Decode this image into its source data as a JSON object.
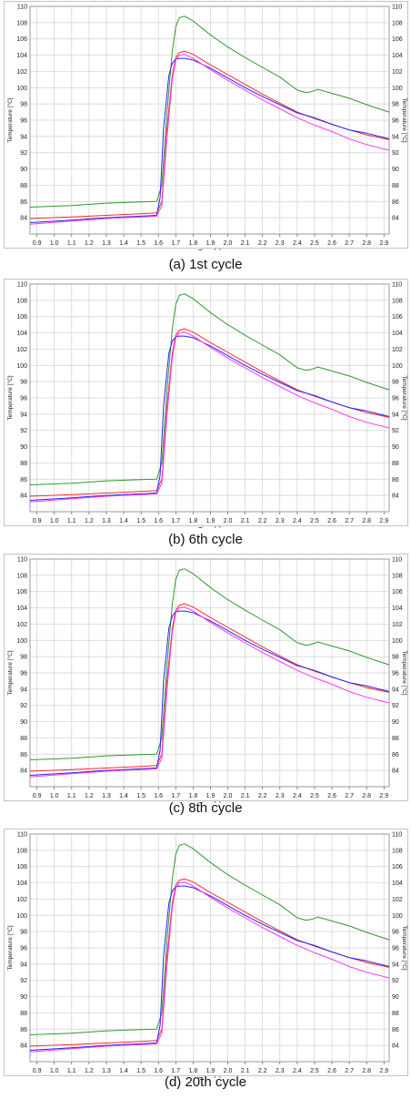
{
  "colors": {
    "green": "#2e9a2e",
    "red": "#ff2a2a",
    "blue": "#2424ff",
    "magenta": "#ff33ff",
    "grid": "#d0d0d0",
    "frame": "#9a9a9a"
  },
  "chart_data": [
    {
      "type": "line",
      "caption": "(a)  1st  cycle",
      "xlabel": "Time [s]",
      "ylabel": "Temperature [°C]",
      "ylabel_right": "Temperature [°C]",
      "xlim": [
        0.86,
        2.93
      ],
      "ylim": [
        82,
        110
      ],
      "xticks": [
        "0.9",
        "1.0",
        "1.1",
        "1.2",
        "1.3",
        "1.4",
        "1.5",
        "1.6",
        "1.7",
        "1.8",
        "1.9",
        "2.0",
        "2.1",
        "2.2",
        "2.3",
        "2.4",
        "2.5",
        "2.6",
        "2.7",
        "2.8",
        "2.9"
      ],
      "yticks": [
        "84",
        "86",
        "88",
        "90",
        "92",
        "94",
        "96",
        "98",
        "100",
        "102",
        "104",
        "106",
        "108",
        "110"
      ],
      "grid": true,
      "series": [
        {
          "color": "green",
          "x": [
            0.86,
            1.1,
            1.3,
            1.5,
            1.59,
            1.62,
            1.65,
            1.68,
            1.7,
            1.72,
            1.75,
            1.8,
            1.9,
            2.0,
            2.1,
            2.2,
            2.3,
            2.4,
            2.45,
            2.48,
            2.52,
            2.6,
            2.7,
            2.8,
            2.93
          ],
          "y": [
            85.3,
            85.5,
            85.8,
            85.95,
            86.0,
            88.0,
            97.0,
            104.5,
            107.5,
            108.6,
            108.8,
            108.2,
            106.5,
            105.0,
            103.7,
            102.5,
            101.3,
            99.7,
            99.4,
            99.5,
            99.8,
            99.3,
            98.7,
            97.9,
            97.0
          ]
        },
        {
          "color": "red",
          "x": [
            0.86,
            1.1,
            1.3,
            1.5,
            1.59,
            1.62,
            1.65,
            1.68,
            1.7,
            1.72,
            1.75,
            1.8,
            1.9,
            2.0,
            2.1,
            2.2,
            2.3,
            2.4,
            2.5,
            2.6,
            2.7,
            2.8,
            2.93
          ],
          "y": [
            83.9,
            84.1,
            84.3,
            84.5,
            84.6,
            86.0,
            95.0,
            101.5,
            103.7,
            104.3,
            104.5,
            104.1,
            102.8,
            101.6,
            100.4,
            99.2,
            98.1,
            97.0,
            96.2,
            95.5,
            94.8,
            94.2,
            93.6
          ]
        },
        {
          "color": "blue",
          "x": [
            0.86,
            1.1,
            1.3,
            1.5,
            1.59,
            1.61,
            1.63,
            1.66,
            1.68,
            1.7,
            1.72,
            1.75,
            1.8,
            1.9,
            2.0,
            2.1,
            2.2,
            2.3,
            2.4,
            2.5,
            2.6,
            2.7,
            2.8,
            2.93
          ],
          "y": [
            83.4,
            83.7,
            84.0,
            84.2,
            84.3,
            86.5,
            95.0,
            101.5,
            103.0,
            103.5,
            103.6,
            103.6,
            103.4,
            102.4,
            101.2,
            100.0,
            98.9,
            97.9,
            96.9,
            96.3,
            95.5,
            94.8,
            94.4,
            93.7
          ]
        },
        {
          "color": "magenta",
          "x": [
            0.86,
            1.1,
            1.3,
            1.5,
            1.59,
            1.62,
            1.65,
            1.68,
            1.7,
            1.72,
            1.75,
            1.8,
            1.9,
            2.0,
            2.1,
            2.2,
            2.3,
            2.4,
            2.5,
            2.6,
            2.7,
            2.8,
            2.93
          ],
          "y": [
            83.2,
            83.6,
            83.9,
            84.1,
            84.2,
            85.5,
            94.0,
            101.0,
            103.4,
            104.0,
            104.1,
            103.6,
            102.2,
            100.9,
            99.7,
            98.5,
            97.4,
            96.3,
            95.4,
            94.6,
            93.7,
            93.0,
            92.3
          ]
        }
      ]
    },
    {
      "type": "line",
      "caption": "(b)  6th  cycle",
      "xlabel": "Time [s]",
      "ylabel": "Temperature [°C]",
      "ylabel_right": "Temperature [°C]",
      "xlim": [
        0.86,
        2.93
      ],
      "ylim": [
        82,
        110
      ],
      "xticks": [
        "0.9",
        "1.0",
        "1.1",
        "1.2",
        "1.3",
        "1.4",
        "1.5",
        "1.6",
        "1.7",
        "1.8",
        "1.9",
        "2.0",
        "2.1",
        "2.2",
        "2.3",
        "2.4",
        "2.5",
        "2.6",
        "2.7",
        "2.8",
        "2.9"
      ],
      "yticks": [
        "84",
        "86",
        "88",
        "90",
        "92",
        "94",
        "96",
        "98",
        "100",
        "102",
        "104",
        "106",
        "108",
        "110"
      ],
      "grid": true,
      "series": [
        {
          "color": "green",
          "x": [
            0.86,
            1.1,
            1.3,
            1.5,
            1.59,
            1.62,
            1.65,
            1.68,
            1.7,
            1.72,
            1.75,
            1.8,
            1.9,
            2.0,
            2.1,
            2.2,
            2.3,
            2.4,
            2.45,
            2.48,
            2.52,
            2.6,
            2.7,
            2.8,
            2.93
          ],
          "y": [
            85.3,
            85.5,
            85.8,
            85.95,
            86.0,
            88.0,
            97.0,
            104.5,
            107.5,
            108.6,
            108.8,
            108.2,
            106.5,
            105.0,
            103.7,
            102.5,
            101.3,
            99.7,
            99.4,
            99.5,
            99.8,
            99.3,
            98.7,
            97.9,
            97.0
          ]
        },
        {
          "color": "red",
          "x": [
            0.86,
            1.1,
            1.3,
            1.5,
            1.59,
            1.62,
            1.65,
            1.68,
            1.7,
            1.72,
            1.75,
            1.8,
            1.9,
            2.0,
            2.1,
            2.2,
            2.3,
            2.4,
            2.5,
            2.6,
            2.7,
            2.8,
            2.93
          ],
          "y": [
            83.9,
            84.1,
            84.3,
            84.5,
            84.6,
            86.0,
            95.0,
            101.5,
            103.7,
            104.3,
            104.5,
            104.1,
            102.8,
            101.6,
            100.4,
            99.2,
            98.1,
            97.0,
            96.2,
            95.5,
            94.8,
            94.2,
            93.6
          ]
        },
        {
          "color": "blue",
          "x": [
            0.86,
            1.1,
            1.3,
            1.5,
            1.59,
            1.61,
            1.63,
            1.66,
            1.68,
            1.7,
            1.72,
            1.75,
            1.8,
            1.9,
            2.0,
            2.1,
            2.2,
            2.3,
            2.4,
            2.5,
            2.6,
            2.7,
            2.8,
            2.93
          ],
          "y": [
            83.4,
            83.7,
            84.0,
            84.2,
            84.3,
            86.5,
            95.0,
            101.5,
            103.0,
            103.5,
            103.6,
            103.6,
            103.4,
            102.4,
            101.2,
            100.0,
            98.9,
            97.9,
            96.9,
            96.3,
            95.5,
            94.8,
            94.4,
            93.7
          ]
        },
        {
          "color": "magenta",
          "x": [
            0.86,
            1.1,
            1.3,
            1.5,
            1.59,
            1.62,
            1.65,
            1.68,
            1.7,
            1.72,
            1.75,
            1.8,
            1.9,
            2.0,
            2.1,
            2.2,
            2.3,
            2.4,
            2.5,
            2.6,
            2.7,
            2.8,
            2.93
          ],
          "y": [
            83.2,
            83.6,
            83.9,
            84.1,
            84.2,
            85.5,
            94.0,
            101.0,
            103.4,
            104.0,
            104.1,
            103.6,
            102.2,
            100.9,
            99.7,
            98.5,
            97.4,
            96.3,
            95.4,
            94.6,
            93.7,
            93.0,
            92.3
          ]
        }
      ]
    },
    {
      "type": "line",
      "caption": "(c)  8th  cycle",
      "xlabel": "Time [s]",
      "ylabel": "Temperature [°C]",
      "ylabel_right": "Temperature [°C]",
      "xlim": [
        0.86,
        2.93
      ],
      "ylim": [
        82,
        110
      ],
      "xticks": [
        "0.9",
        "1.0",
        "1.1",
        "1.2",
        "1.3",
        "1.4",
        "1.5",
        "1.6",
        "1.7",
        "1.8",
        "1.9",
        "2.0",
        "2.1",
        "2.2",
        "2.3",
        "2.4",
        "2.5",
        "2.6",
        "2.7",
        "2.8",
        "2.9"
      ],
      "yticks": [
        "84",
        "86",
        "88",
        "90",
        "92",
        "94",
        "96",
        "98",
        "100",
        "102",
        "104",
        "106",
        "108",
        "110"
      ],
      "grid": true,
      "series": [
        {
          "color": "green",
          "x": [
            0.86,
            1.1,
            1.3,
            1.5,
            1.59,
            1.62,
            1.65,
            1.68,
            1.7,
            1.72,
            1.75,
            1.8,
            1.9,
            2.0,
            2.1,
            2.2,
            2.3,
            2.4,
            2.45,
            2.48,
            2.52,
            2.6,
            2.7,
            2.8,
            2.93
          ],
          "y": [
            85.3,
            85.5,
            85.8,
            85.95,
            86.0,
            88.0,
            97.0,
            104.5,
            107.5,
            108.6,
            108.8,
            108.2,
            106.5,
            105.0,
            103.7,
            102.5,
            101.3,
            99.7,
            99.4,
            99.5,
            99.8,
            99.3,
            98.7,
            97.9,
            97.0
          ]
        },
        {
          "color": "red",
          "x": [
            0.86,
            1.1,
            1.3,
            1.5,
            1.59,
            1.62,
            1.65,
            1.68,
            1.7,
            1.72,
            1.75,
            1.8,
            1.9,
            2.0,
            2.1,
            2.2,
            2.3,
            2.4,
            2.5,
            2.6,
            2.7,
            2.8,
            2.93
          ],
          "y": [
            83.9,
            84.1,
            84.3,
            84.5,
            84.6,
            86.0,
            95.0,
            101.5,
            103.7,
            104.3,
            104.5,
            104.1,
            102.8,
            101.6,
            100.4,
            99.2,
            98.1,
            97.0,
            96.2,
            95.5,
            94.8,
            94.2,
            93.6
          ]
        },
        {
          "color": "blue",
          "x": [
            0.86,
            1.1,
            1.3,
            1.5,
            1.59,
            1.61,
            1.63,
            1.66,
            1.68,
            1.7,
            1.72,
            1.75,
            1.8,
            1.9,
            2.0,
            2.1,
            2.2,
            2.3,
            2.4,
            2.5,
            2.6,
            2.7,
            2.8,
            2.93
          ],
          "y": [
            83.4,
            83.7,
            84.0,
            84.2,
            84.3,
            86.5,
            95.0,
            101.5,
            103.0,
            103.5,
            103.6,
            103.6,
            103.4,
            102.4,
            101.2,
            100.0,
            98.9,
            97.9,
            96.9,
            96.3,
            95.5,
            94.8,
            94.4,
            93.7
          ]
        },
        {
          "color": "magenta",
          "x": [
            0.86,
            1.1,
            1.3,
            1.5,
            1.59,
            1.62,
            1.65,
            1.68,
            1.7,
            1.72,
            1.75,
            1.8,
            1.9,
            2.0,
            2.1,
            2.2,
            2.3,
            2.4,
            2.5,
            2.6,
            2.7,
            2.8,
            2.93
          ],
          "y": [
            83.2,
            83.6,
            83.9,
            84.1,
            84.2,
            85.5,
            94.0,
            101.0,
            103.4,
            104.0,
            104.1,
            103.6,
            102.2,
            100.9,
            99.7,
            98.5,
            97.4,
            96.3,
            95.4,
            94.6,
            93.7,
            93.0,
            92.3
          ]
        }
      ]
    },
    {
      "type": "line",
      "caption": "(d) 20th cycle",
      "xlabel": "Time [s]",
      "ylabel": "Temperature [°C]",
      "ylabel_right": "Temperature [°C]",
      "xlim": [
        0.86,
        2.93
      ],
      "ylim": [
        82,
        110
      ],
      "xticks": [
        "0.9",
        "1.0",
        "1.1",
        "1.2",
        "1.3",
        "1.4",
        "1.5",
        "1.6",
        "1.7",
        "1.8",
        "1.9",
        "2.0",
        "2.1",
        "2.2",
        "2.3",
        "2.4",
        "2.5",
        "2.6",
        "2.7",
        "2.8",
        "2.9"
      ],
      "yticks": [
        "84",
        "86",
        "88",
        "90",
        "92",
        "94",
        "96",
        "98",
        "100",
        "102",
        "104",
        "106",
        "108",
        "110"
      ],
      "grid": true,
      "series": [
        {
          "color": "green",
          "x": [
            0.86,
            1.1,
            1.3,
            1.5,
            1.59,
            1.62,
            1.65,
            1.68,
            1.7,
            1.72,
            1.75,
            1.8,
            1.9,
            2.0,
            2.1,
            2.2,
            2.3,
            2.4,
            2.45,
            2.48,
            2.52,
            2.6,
            2.7,
            2.8,
            2.93
          ],
          "y": [
            85.3,
            85.5,
            85.8,
            85.95,
            86.0,
            88.0,
            97.0,
            104.5,
            107.5,
            108.6,
            108.8,
            108.2,
            106.5,
            105.0,
            103.7,
            102.5,
            101.3,
            99.7,
            99.4,
            99.5,
            99.8,
            99.3,
            98.7,
            97.9,
            97.0
          ]
        },
        {
          "color": "red",
          "x": [
            0.86,
            1.1,
            1.3,
            1.5,
            1.59,
            1.62,
            1.65,
            1.68,
            1.7,
            1.72,
            1.75,
            1.8,
            1.9,
            2.0,
            2.1,
            2.2,
            2.3,
            2.4,
            2.5,
            2.6,
            2.7,
            2.8,
            2.93
          ],
          "y": [
            83.9,
            84.1,
            84.3,
            84.5,
            84.6,
            86.0,
            95.0,
            101.5,
            103.7,
            104.3,
            104.5,
            104.1,
            102.8,
            101.6,
            100.4,
            99.2,
            98.1,
            97.0,
            96.2,
            95.5,
            94.8,
            94.2,
            93.6
          ]
        },
        {
          "color": "blue",
          "x": [
            0.86,
            1.1,
            1.3,
            1.5,
            1.59,
            1.61,
            1.63,
            1.66,
            1.68,
            1.7,
            1.72,
            1.75,
            1.8,
            1.9,
            2.0,
            2.1,
            2.2,
            2.3,
            2.4,
            2.5,
            2.6,
            2.7,
            2.8,
            2.93
          ],
          "y": [
            83.4,
            83.7,
            84.0,
            84.2,
            84.3,
            86.5,
            95.0,
            101.5,
            103.0,
            103.5,
            103.6,
            103.6,
            103.4,
            102.4,
            101.2,
            100.0,
            98.9,
            97.9,
            96.9,
            96.3,
            95.5,
            94.8,
            94.4,
            93.7
          ]
        },
        {
          "color": "magenta",
          "x": [
            0.86,
            1.1,
            1.3,
            1.5,
            1.59,
            1.62,
            1.65,
            1.68,
            1.7,
            1.72,
            1.75,
            1.8,
            1.9,
            2.0,
            2.1,
            2.2,
            2.3,
            2.4,
            2.5,
            2.6,
            2.7,
            2.8,
            2.93
          ],
          "y": [
            83.2,
            83.6,
            83.9,
            84.1,
            84.2,
            85.5,
            94.0,
            101.0,
            103.4,
            104.0,
            104.1,
            103.6,
            102.2,
            100.9,
            99.7,
            98.5,
            97.4,
            96.3,
            95.4,
            94.6,
            93.7,
            93.0,
            92.3
          ]
        }
      ]
    }
  ]
}
